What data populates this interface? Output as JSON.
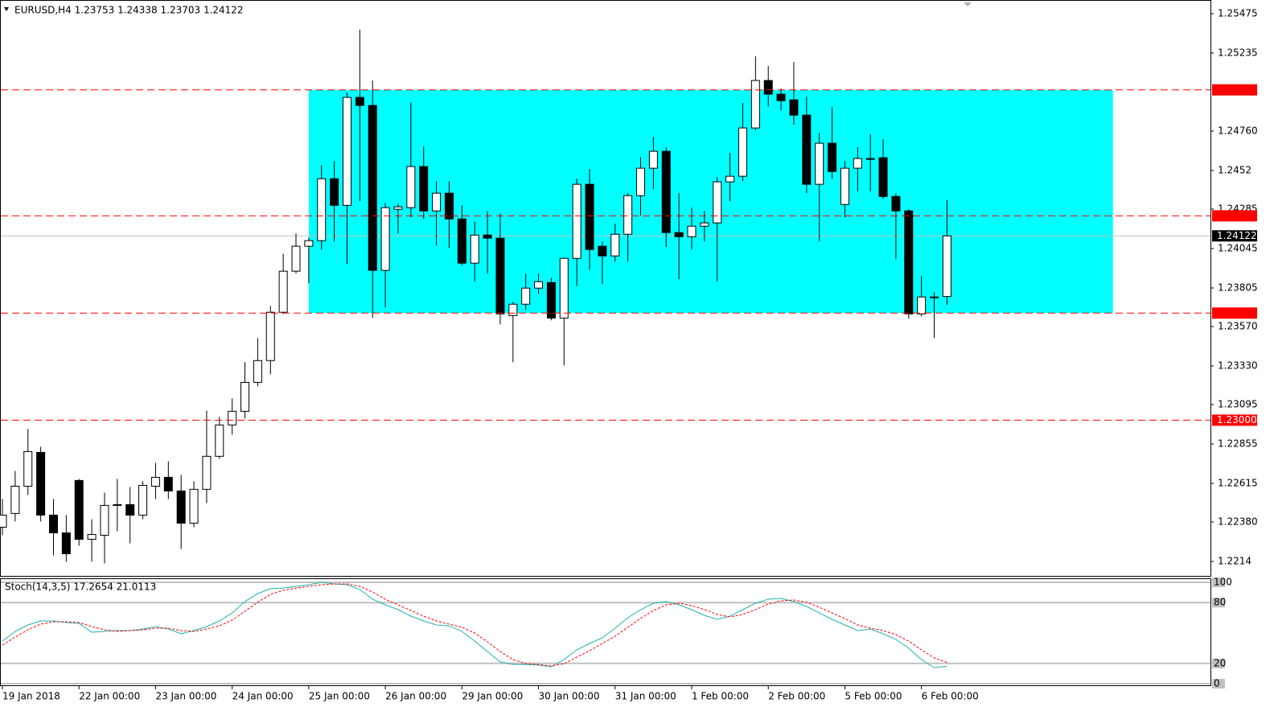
{
  "chart_data": [
    {
      "type": "candlestick",
      "title": "EURUSD,H4  1.23753 1.24338 1.23703 1.24122",
      "categories": [
        "19 Jan 2018",
        null,
        null,
        null,
        null,
        null,
        "22 Jan 00:00",
        null,
        null,
        null,
        null,
        null,
        "23 Jan 00:00",
        null,
        null,
        null,
        null,
        null,
        "24 Jan 00:00",
        null,
        null,
        null,
        null,
        null,
        "25 Jan 00:00",
        null,
        null,
        null,
        null,
        null,
        "26 Jan 00:00",
        null,
        null,
        null,
        null,
        null,
        "29 Jan 00:00",
        null,
        null,
        null,
        null,
        null,
        "30 Jan 00:00",
        null,
        null,
        null,
        null,
        null,
        "31 Jan 00:00",
        null,
        null,
        null,
        null,
        null,
        "1 Feb 00:00",
        null,
        null,
        null,
        null,
        null,
        "2 Feb 00:00",
        null,
        null,
        null,
        null,
        null,
        "5 Feb 00:00",
        null,
        null,
        null,
        null,
        null,
        "6 Feb 00:00",
        null,
        null
      ],
      "open": [
        1.22348,
        1.22432,
        1.22598,
        1.22804,
        1.22422,
        1.22314,
        1.22633,
        1.22275,
        1.22299,
        1.22486,
        1.22486,
        1.22422,
        1.22598,
        1.22652,
        1.22569,
        1.22373,
        1.22579,
        1.2278,
        1.22971,
        1.23054,
        1.2323,
        1.23363,
        1.23657,
        1.23907,
        1.24059,
        1.24093,
        1.2447,
        1.24308,
        1.24965,
        1.24916,
        1.23912,
        1.24284,
        1.24294,
        1.24544,
        1.24274,
        1.24382,
        1.24225,
        1.23956,
        1.24127,
        1.24108,
        1.23637,
        1.23706,
        1.23804,
        1.23838,
        1.23622,
        1.23985,
        1.24436,
        1.24059,
        1.24,
        1.24132,
        1.24367,
        1.24534,
        1.24637,
        1.24142,
        1.24117,
        1.24181,
        1.24201,
        1.24451,
        1.24485,
        1.24779,
        1.25068,
        1.24985,
        1.2495,
        1.24857,
        1.24436,
        1.24686,
        1.24313,
        1.24534,
        1.24588,
        1.24598,
        1.24362,
        1.24274,
        1.23647,
        1.23745,
        1.23753
      ],
      "high": [
        1.2252,
        1.22691,
        1.22946,
        1.22838,
        1.2252,
        1.22422,
        1.22642,
        1.22397,
        1.22559,
        1.22642,
        1.22593,
        1.22628,
        1.2274,
        1.2275,
        1.22667,
        1.22628,
        1.23059,
        1.2302,
        1.23132,
        1.23353,
        1.235,
        1.23696,
        1.24014,
        1.24137,
        1.24112,
        1.24553,
        1.24578,
        1.24994,
        1.25377,
        1.25068,
        1.24323,
        1.24318,
        1.24936,
        1.24666,
        1.24455,
        1.24455,
        1.24308,
        1.2421,
        1.24274,
        1.24259,
        1.2372,
        1.23892,
        1.23892,
        1.23867,
        1.2399,
        1.2447,
        1.24529,
        1.24088,
        1.24196,
        1.24382,
        1.24602,
        1.24725,
        1.24661,
        1.24382,
        1.24294,
        1.24274,
        1.2448,
        1.24627,
        1.24931,
        1.25215,
        1.25156,
        1.25019,
        1.25181,
        1.2497,
        1.24749,
        1.24906,
        1.24578,
        1.24661,
        1.2474,
        1.2471,
        1.24382,
        1.24284,
        1.23877,
        1.23779,
        1.24338
      ],
      "low": [
        1.22299,
        1.22383,
        1.22544,
        1.22383,
        1.22177,
        1.22138,
        1.22236,
        1.22138,
        1.22128,
        1.22324,
        1.2225,
        1.22397,
        1.2252,
        1.2252,
        1.22216,
        1.22348,
        1.22495,
        1.22765,
        1.22912,
        1.2301,
        1.23206,
        1.23279,
        1.23647,
        1.23892,
        1.23833,
        1.24039,
        1.24088,
        1.23951,
        1.24333,
        1.23622,
        1.23686,
        1.24137,
        1.24235,
        1.24225,
        1.24063,
        1.24049,
        1.23941,
        1.23843,
        1.23892,
        1.23583,
        1.23353,
        1.23671,
        1.23769,
        1.23608,
        1.23333,
        1.23818,
        1.23916,
        1.23828,
        1.23965,
        1.23965,
        1.24245,
        1.24406,
        1.24054,
        1.23858,
        1.24039,
        1.24088,
        1.23843,
        1.24333,
        1.24455,
        1.24764,
        1.24911,
        1.24887,
        1.24798,
        1.24382,
        1.24088,
        1.2447,
        1.24235,
        1.24392,
        1.24392,
        1.24348,
        1.2398,
        1.23618,
        1.23632,
        1.235,
        1.23703
      ],
      "close": [
        1.22422,
        1.22598,
        1.22809,
        1.22422,
        1.22314,
        1.22187,
        1.22275,
        1.22304,
        1.22481,
        1.22481,
        1.22422,
        1.22603,
        1.22652,
        1.22569,
        1.22373,
        1.22579,
        1.2278,
        1.22971,
        1.23054,
        1.2323,
        1.23363,
        1.23657,
        1.23907,
        1.24059,
        1.24093,
        1.2447,
        1.24308,
        1.24965,
        1.24916,
        1.23912,
        1.24294,
        1.24299,
        1.24544,
        1.24274,
        1.24382,
        1.24225,
        1.23956,
        1.24127,
        1.24108,
        1.23647,
        1.23706,
        1.23804,
        1.23843,
        1.23622,
        1.23985,
        1.24436,
        1.24039,
        1.24,
        1.24132,
        1.24367,
        1.24534,
        1.24637,
        1.24142,
        1.24117,
        1.24181,
        1.24201,
        1.24451,
        1.24485,
        1.24779,
        1.25068,
        1.24985,
        1.24945,
        1.24857,
        1.24436,
        1.24686,
        1.24514,
        1.24534,
        1.24593,
        1.24593,
        1.24362,
        1.24274,
        1.23647,
        1.2375,
        1.2375,
        1.24122
      ],
      "up_color": "#ffffff",
      "down_color": "#000000",
      "ylim": [
        1.22052,
        1.25558
      ],
      "yticks": [
        1.25475,
        1.25235,
        {
          "value": 1.2476,
          "label": "1.24760"
        },
        1.2452,
        1.24285,
        1.24045,
        1.23805,
        {
          "value": 1.2357,
          "label": "1.23570"
        },
        {
          "value": 1.2333,
          "label": "1.23330"
        },
        1.23095,
        1.22855,
        1.22615,
        {
          "value": 1.2238,
          "label": "1.22380"
        },
        1.2214
      ],
      "levels": [
        {
          "value": 1.25011
        },
        {
          "value": 1.24244
        },
        {
          "value": 1.23652
        },
        {
          "value": 1.23,
          "label": "1.23000"
        }
      ],
      "level_color": "#ff0000",
      "current_price": 1.24122,
      "rectangle": {
        "top": 1.25011,
        "bottom": 1.23652,
        "from": 24,
        "to": 87,
        "color": "#00ffff"
      }
    },
    {
      "type": "line",
      "title": "Stoch(14,3,5) 17.2654 21.0113",
      "series": [
        {
          "color": "#20b2aa",
          "values": [
            42.1,
            51.6,
            57.9,
            61.9,
            61.9,
            60.3,
            59.5,
            50.8,
            51.6,
            52.4,
            52.4,
            54.0,
            56.3,
            54.0,
            49.2,
            52.4,
            56.3,
            61.9,
            69.8,
            81.0,
            88.9,
            93.7,
            94.4,
            96.0,
            97.6,
            100.0,
            98.4,
            97.6,
            92.9,
            83.3,
            77.8,
            73.0,
            66.7,
            61.9,
            57.9,
            57.1,
            51.6,
            42.1,
            31.7,
            21.4,
            19.0,
            19.0,
            18.3,
            16.7,
            23.8,
            33.3,
            39.7,
            45.2,
            54.8,
            65.1,
            73.0,
            79.4,
            81.0,
            77.8,
            73.0,
            67.5,
            63.5,
            66.7,
            73.0,
            79.4,
            83.3,
            84.1,
            81.0,
            76.2,
            69.8,
            63.5,
            57.9,
            52.4,
            54.0,
            49.2,
            43.7,
            34.9,
            23.8,
            15.9,
            17.2654
          ]
        },
        {
          "color": "#ff0000",
          "dashed": true,
          "values": [
            38.1,
            46.0,
            53.2,
            58.7,
            61.1,
            61.1,
            60.3,
            56.3,
            53.2,
            51.6,
            52.4,
            53.2,
            54.8,
            54.8,
            52.4,
            51.6,
            54.0,
            57.1,
            62.7,
            71.4,
            80.2,
            88.1,
            92.1,
            94.4,
            96.0,
            97.6,
            98.4,
            98.4,
            96.0,
            90.5,
            83.3,
            77.8,
            72.2,
            66.7,
            61.9,
            58.7,
            55.6,
            50.0,
            41.3,
            31.7,
            23.8,
            19.8,
            19.0,
            17.5,
            19.8,
            26.2,
            32.5,
            39.7,
            46.8,
            55.6,
            64.3,
            72.2,
            77.8,
            79.4,
            77.0,
            73.0,
            68.3,
            65.9,
            68.3,
            73.0,
            78.6,
            81.7,
            82.5,
            80.2,
            75.4,
            69.8,
            64.3,
            57.9,
            54.8,
            52.4,
            48.4,
            42.1,
            33.3,
            25.4,
            21.0113
          ]
        }
      ],
      "ylim": [
        0,
        100
      ],
      "yticks": [
        100,
        80,
        20,
        0
      ]
    }
  ]
}
